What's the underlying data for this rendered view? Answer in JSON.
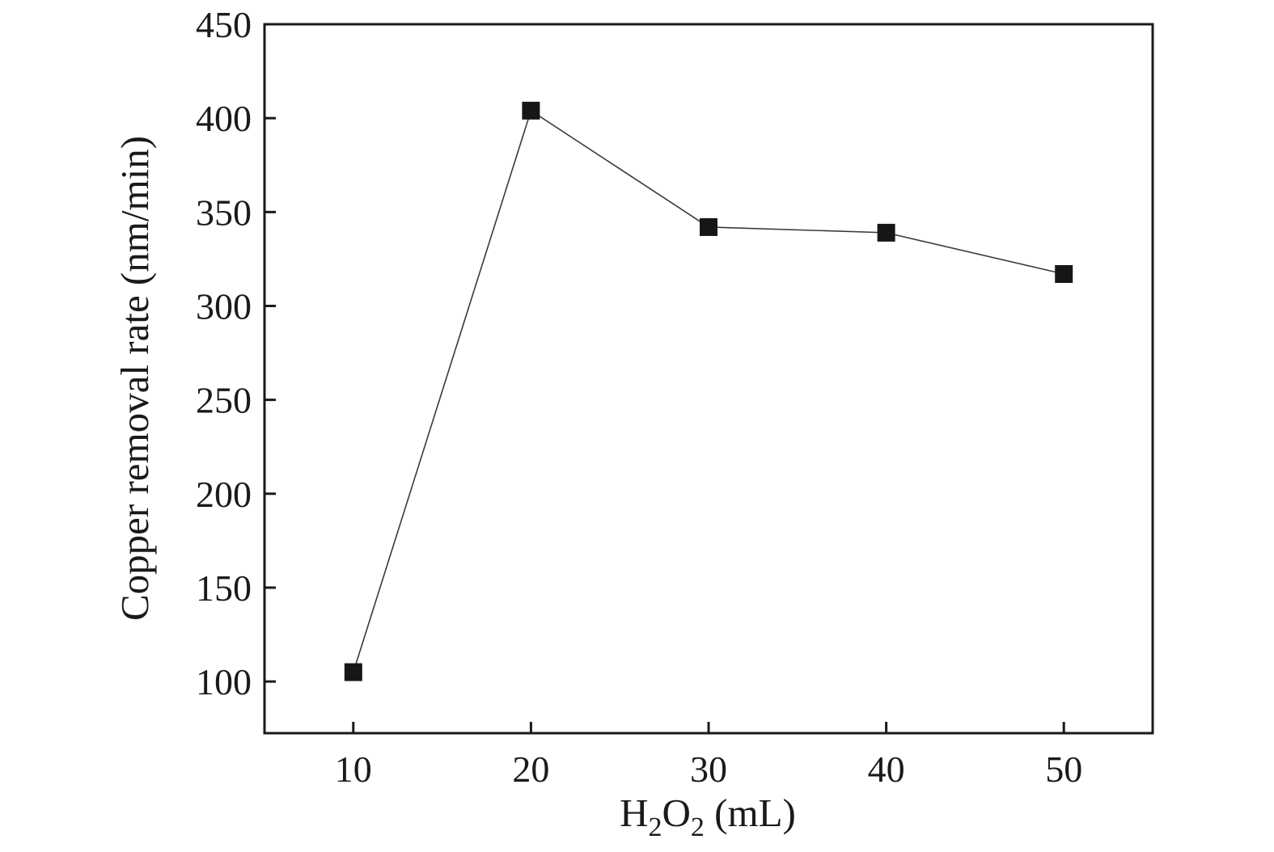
{
  "chart_data": {
    "type": "line",
    "x": [
      10,
      20,
      30,
      40,
      50
    ],
    "series": [
      {
        "name": "Copper removal rate",
        "values": [
          105,
          404,
          342,
          339,
          317
        ]
      }
    ],
    "title": "",
    "xlabel": "H2O2 (mL)",
    "xlabel_rich": [
      {
        "t": "H",
        "sub": false
      },
      {
        "t": "2",
        "sub": true
      },
      {
        "t": "O",
        "sub": false
      },
      {
        "t": "2",
        "sub": true
      },
      {
        "t": " (mL)",
        "sub": false
      }
    ],
    "ylabel": "Copper removal rate (nm/min)",
    "xlim": [
      5,
      55
    ],
    "ylim": [
      72.5,
      450
    ],
    "xticks": [
      10,
      20,
      30,
      40,
      50
    ],
    "yticks": [
      100,
      150,
      200,
      250,
      300,
      350,
      400,
      450
    ],
    "grid": false,
    "legend": "none",
    "marker": "square",
    "marker_size": 22,
    "line_width": 1.6,
    "colors": {
      "line": "#3a3a3a",
      "marker": "#161616",
      "axis": "#1a1a1a",
      "background": "#ffffff"
    }
  }
}
